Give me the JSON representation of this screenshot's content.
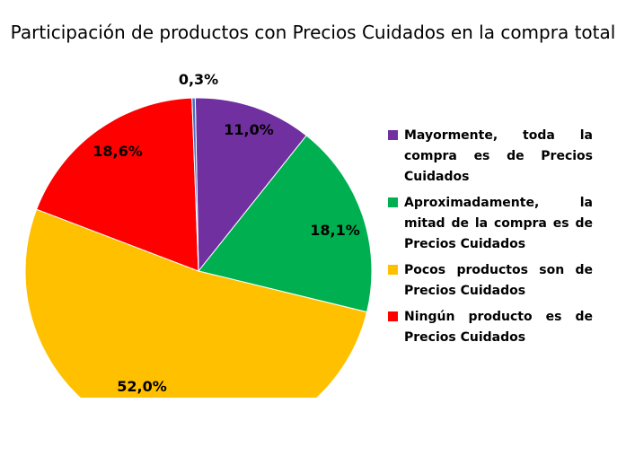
{
  "chart_data": {
    "type": "pie",
    "title": "Participación de productos con Precios Cuidados en la compra total",
    "slices": [
      {
        "label": "Mayormente, toda la compra es de Precios Cuidados",
        "value": 11.0,
        "value_label": "11,0%",
        "color": "#7030a0"
      },
      {
        "label": "Aproximadamente, la mitad de la compra es de Precios Cuidados",
        "value": 18.1,
        "value_label": "18,1%",
        "color": "#00b050"
      },
      {
        "label": "Pocos productos son de Precios Cuidados",
        "value": 52.0,
        "value_label": "52,0%",
        "color": "#ffc000"
      },
      {
        "label": "Ningún producto es de Precios Cuidados",
        "value": 18.6,
        "value_label": "18,6%",
        "color": "#ff0000"
      },
      {
        "label": "",
        "value": 0.3,
        "value_label": "0,3%",
        "color": "#4472c4"
      }
    ],
    "legend_position": "right"
  }
}
